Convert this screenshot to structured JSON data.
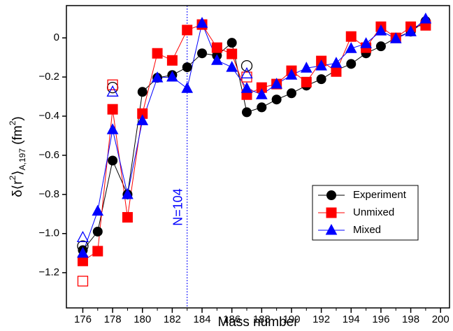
{
  "chart_data": {
    "type": "line",
    "x_label": "Mass number",
    "y_label": [
      [
        "δ⟨r",
        "normal"
      ],
      [
        "2",
        "sup"
      ],
      [
        "⟩",
        "normal"
      ],
      [
        "A,197",
        "sub"
      ],
      [
        " (fm",
        "normal"
      ],
      [
        "2",
        "sup"
      ],
      [
        ")",
        "normal"
      ]
    ],
    "x": [
      176,
      177,
      178,
      179,
      180,
      181,
      182,
      183,
      184,
      185,
      186,
      187,
      188,
      189,
      190,
      191,
      192,
      193,
      194,
      195,
      196,
      197,
      198,
      199
    ],
    "series": [
      {
        "name": "Experiment",
        "color": "#000000",
        "marker": "circle",
        "values": [
          -1.085,
          -0.99,
          -0.627,
          -0.8,
          -0.276,
          -0.204,
          -0.19,
          -0.15,
          -0.079,
          -0.09,
          -0.025,
          -0.38,
          -0.355,
          -0.315,
          -0.283,
          -0.244,
          -0.211,
          -0.165,
          -0.133,
          -0.079,
          -0.043,
          0,
          0.032,
          0.086
        ],
        "open_x": [
          176,
          178,
          187
        ],
        "open_values": [
          -1.064,
          -0.254,
          -0.143
        ]
      },
      {
        "name": "Unmixed",
        "color": "#ff0000",
        "marker": "square",
        "values": [
          -1.14,
          -1.09,
          -0.365,
          -0.917,
          -0.387,
          -0.079,
          -0.115,
          0.04,
          0.068,
          -0.05,
          -0.082,
          -0.29,
          -0.254,
          -0.236,
          -0.168,
          -0.226,
          -0.118,
          -0.172,
          0.007,
          -0.05,
          0.057,
          0,
          0.057,
          0.064
        ],
        "open_x": [
          176,
          178,
          187
        ],
        "open_values": [
          -1.243,
          -0.24,
          -0.2
        ]
      },
      {
        "name": "Mixed",
        "color": "#0000ff",
        "marker": "triangle",
        "values": [
          -1.1,
          -0.885,
          -0.469,
          -0.8,
          -0.423,
          -0.204,
          -0.2,
          -0.258,
          0.075,
          -0.115,
          -0.15,
          -0.258,
          -0.29,
          -0.236,
          -0.19,
          -0.154,
          -0.143,
          -0.129,
          -0.054,
          -0.029,
          0.036,
          -0.004,
          0.032,
          0.097
        ],
        "open_x": [
          176,
          178,
          187
        ],
        "open_values": [
          -1.02,
          -0.276,
          -0.183
        ]
      }
    ],
    "annotation": {
      "text": "N=104",
      "x": 183,
      "color": "#0000ff"
    },
    "xlim": [
      174.9,
      200.6
    ],
    "ylim": [
      -1.38,
      0.165
    ],
    "xticks": [
      176,
      178,
      180,
      182,
      184,
      186,
      188,
      190,
      192,
      194,
      196,
      198,
      200
    ],
    "yticks": [
      {
        "value": -1.2,
        "label": "−1.2"
      },
      {
        "value": -1.0,
        "label": "−1.0"
      },
      {
        "value": -0.8,
        "label": "−0.8"
      },
      {
        "value": -0.6,
        "label": "−0.6"
      },
      {
        "value": -0.4,
        "label": "−0.4"
      },
      {
        "value": -0.2,
        "label": "−0.2"
      },
      0
    ],
    "legend_loc": "lower right",
    "grid": false
  }
}
